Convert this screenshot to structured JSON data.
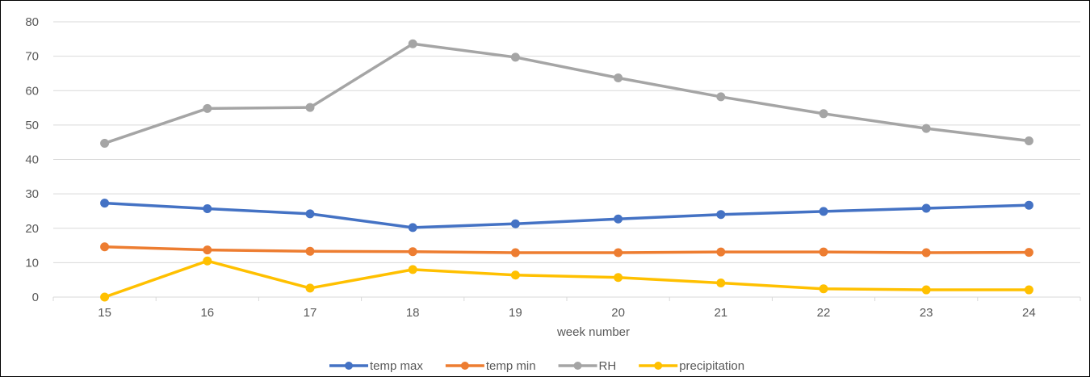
{
  "chart_data": {
    "type": "line",
    "xlabel": "week number",
    "ylabel": "",
    "categories": [
      "15",
      "16",
      "17",
      "18",
      "19",
      "20",
      "21",
      "22",
      "23",
      "24"
    ],
    "ylim": [
      0,
      80
    ],
    "yticks": [
      0,
      10,
      20,
      30,
      40,
      50,
      60,
      70,
      80
    ],
    "grid": true,
    "legend_position": "bottom",
    "series": [
      {
        "name": "temp max",
        "color": "#4472C4",
        "values": [
          27.3,
          25.7,
          24.2,
          20.2,
          21.3,
          22.7,
          24.0,
          24.9,
          25.8,
          26.7
        ]
      },
      {
        "name": "temp min",
        "color": "#ED7D31",
        "values": [
          14.6,
          13.7,
          13.3,
          13.2,
          12.9,
          12.9,
          13.1,
          13.1,
          12.9,
          13.0
        ]
      },
      {
        "name": "RH",
        "color": "#A5A5A5",
        "values": [
          44.7,
          54.8,
          55.1,
          73.6,
          69.7,
          63.7,
          58.2,
          53.3,
          49.0,
          45.4
        ]
      },
      {
        "name": "precipitation",
        "color": "#FFC000",
        "values": [
          0.0,
          10.5,
          2.6,
          8.0,
          6.4,
          5.7,
          4.1,
          2.4,
          2.1,
          2.1
        ]
      }
    ]
  }
}
